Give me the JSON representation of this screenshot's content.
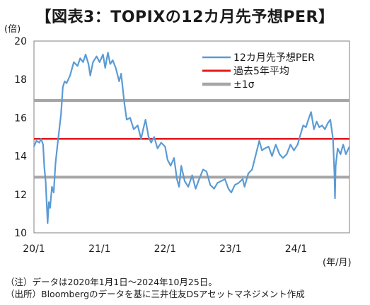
{
  "chart_data": {
    "type": "line",
    "title": "【図表3：TOPIXの12カ月先予想PER】",
    "y_unit": "(倍)",
    "x_unit": "(年/月)",
    "ylim": [
      10,
      20
    ],
    "y_ticks": [
      10,
      12,
      14,
      16,
      18,
      20
    ],
    "x_range": [
      "2020-01-01",
      "2024-10-25"
    ],
    "x_ticks": [
      {
        "date": "2020-01-01",
        "label": "20/1"
      },
      {
        "date": "2021-01-01",
        "label": "21/1"
      },
      {
        "date": "2022-01-01",
        "label": "22/1"
      },
      {
        "date": "2023-01-01",
        "label": "23/1"
      },
      {
        "date": "2024-01-01",
        "label": "24/1"
      }
    ],
    "grid": false,
    "legend_position": "top-right",
    "series": [
      {
        "name": "12カ月先予想PER",
        "color": "#5b9bd5",
        "points": [
          [
            "2020-01-01",
            14.5
          ],
          [
            "2020-01-15",
            14.8
          ],
          [
            "2020-01-31",
            14.7
          ],
          [
            "2020-02-10",
            14.9
          ],
          [
            "2020-02-21",
            14.6
          ],
          [
            "2020-02-28",
            13.4
          ],
          [
            "2020-03-06",
            12.7
          ],
          [
            "2020-03-13",
            11.3
          ],
          [
            "2020-03-17",
            10.5
          ],
          [
            "2020-03-24",
            11.6
          ],
          [
            "2020-03-31",
            11.3
          ],
          [
            "2020-04-10",
            12.4
          ],
          [
            "2020-04-20",
            12.1
          ],
          [
            "2020-04-30",
            13.6
          ],
          [
            "2020-05-10",
            14.5
          ],
          [
            "2020-05-20",
            15.3
          ],
          [
            "2020-05-31",
            16.2
          ],
          [
            "2020-06-10",
            17.6
          ],
          [
            "2020-06-20",
            17.9
          ],
          [
            "2020-07-01",
            17.8
          ],
          [
            "2020-07-20",
            18.2
          ],
          [
            "2020-08-10",
            18.9
          ],
          [
            "2020-08-31",
            18.7
          ],
          [
            "2020-09-15",
            19.1
          ],
          [
            "2020-10-01",
            18.9
          ],
          [
            "2020-10-15",
            19.3
          ],
          [
            "2020-10-31",
            18.8
          ],
          [
            "2020-11-10",
            18.2
          ],
          [
            "2020-11-25",
            18.9
          ],
          [
            "2020-12-15",
            19.2
          ],
          [
            "2021-01-01",
            18.9
          ],
          [
            "2021-01-20",
            19.3
          ],
          [
            "2021-02-01",
            18.6
          ],
          [
            "2021-02-16",
            19.4
          ],
          [
            "2021-03-01",
            18.8
          ],
          [
            "2021-03-15",
            19.0
          ],
          [
            "2021-04-01",
            18.6
          ],
          [
            "2021-04-20",
            17.9
          ],
          [
            "2021-05-01",
            18.3
          ],
          [
            "2021-05-20",
            16.7
          ],
          [
            "2021-06-01",
            15.9
          ],
          [
            "2021-06-20",
            16.0
          ],
          [
            "2021-07-10",
            15.4
          ],
          [
            "2021-08-01",
            15.6
          ],
          [
            "2021-08-20",
            14.9
          ],
          [
            "2021-09-01",
            15.4
          ],
          [
            "2021-09-14",
            15.9
          ],
          [
            "2021-10-01",
            15.0
          ],
          [
            "2021-10-15",
            14.7
          ],
          [
            "2021-11-01",
            15.0
          ],
          [
            "2021-11-20",
            14.4
          ],
          [
            "2021-12-10",
            14.7
          ],
          [
            "2022-01-01",
            14.5
          ],
          [
            "2022-01-15",
            13.8
          ],
          [
            "2022-02-01",
            13.5
          ],
          [
            "2022-02-20",
            13.9
          ],
          [
            "2022-03-08",
            12.8
          ],
          [
            "2022-03-20",
            12.4
          ],
          [
            "2022-04-01",
            13.5
          ],
          [
            "2022-04-20",
            12.7
          ],
          [
            "2022-05-10",
            12.4
          ],
          [
            "2022-06-01",
            13.0
          ],
          [
            "2022-06-20",
            12.3
          ],
          [
            "2022-07-10",
            12.8
          ],
          [
            "2022-08-01",
            13.3
          ],
          [
            "2022-08-20",
            13.2
          ],
          [
            "2022-09-10",
            12.5
          ],
          [
            "2022-10-01",
            12.3
          ],
          [
            "2022-10-20",
            12.6
          ],
          [
            "2022-11-10",
            12.7
          ],
          [
            "2022-12-01",
            12.8
          ],
          [
            "2022-12-20",
            12.3
          ],
          [
            "2023-01-05",
            12.1
          ],
          [
            "2023-01-25",
            12.5
          ],
          [
            "2023-02-15",
            12.6
          ],
          [
            "2023-03-10",
            12.8
          ],
          [
            "2023-03-20",
            12.4
          ],
          [
            "2023-04-10",
            13.1
          ],
          [
            "2023-05-01",
            13.3
          ],
          [
            "2023-05-20",
            14.0
          ],
          [
            "2023-06-10",
            14.8
          ],
          [
            "2023-06-25",
            14.3
          ],
          [
            "2023-07-10",
            14.4
          ],
          [
            "2023-08-01",
            14.5
          ],
          [
            "2023-08-20",
            14.0
          ],
          [
            "2023-09-10",
            14.6
          ],
          [
            "2023-10-01",
            14.1
          ],
          [
            "2023-10-20",
            13.9
          ],
          [
            "2023-11-10",
            14.1
          ],
          [
            "2023-12-01",
            14.6
          ],
          [
            "2023-12-20",
            14.3
          ],
          [
            "2024-01-10",
            14.6
          ],
          [
            "2024-01-25",
            15.1
          ],
          [
            "2024-02-10",
            15.6
          ],
          [
            "2024-02-25",
            15.5
          ],
          [
            "2024-03-10",
            15.9
          ],
          [
            "2024-03-25",
            16.3
          ],
          [
            "2024-04-10",
            15.4
          ],
          [
            "2024-04-25",
            15.8
          ],
          [
            "2024-05-10",
            15.5
          ],
          [
            "2024-05-25",
            15.6
          ],
          [
            "2024-06-10",
            15.4
          ],
          [
            "2024-06-25",
            15.7
          ],
          [
            "2024-07-10",
            15.9
          ],
          [
            "2024-07-25",
            14.9
          ],
          [
            "2024-08-02",
            13.1
          ],
          [
            "2024-08-05",
            11.8
          ],
          [
            "2024-08-09",
            13.5
          ],
          [
            "2024-08-20",
            14.4
          ],
          [
            "2024-09-05",
            14.1
          ],
          [
            "2024-09-20",
            14.6
          ],
          [
            "2024-10-05",
            14.1
          ],
          [
            "2024-10-25",
            14.5
          ]
        ]
      },
      {
        "name": "過去5年平均",
        "color": "#e31a1c",
        "value": 14.9
      },
      {
        "name": "±1σ",
        "color": "#a6a6a6",
        "values": [
          16.9,
          12.9
        ]
      }
    ]
  },
  "notes": [
    "（注）データは2020年1月1日～2024年10月25日。",
    "（出所）Bloombergのデータを基に三井住友DSアセットマネジメント作成"
  ]
}
